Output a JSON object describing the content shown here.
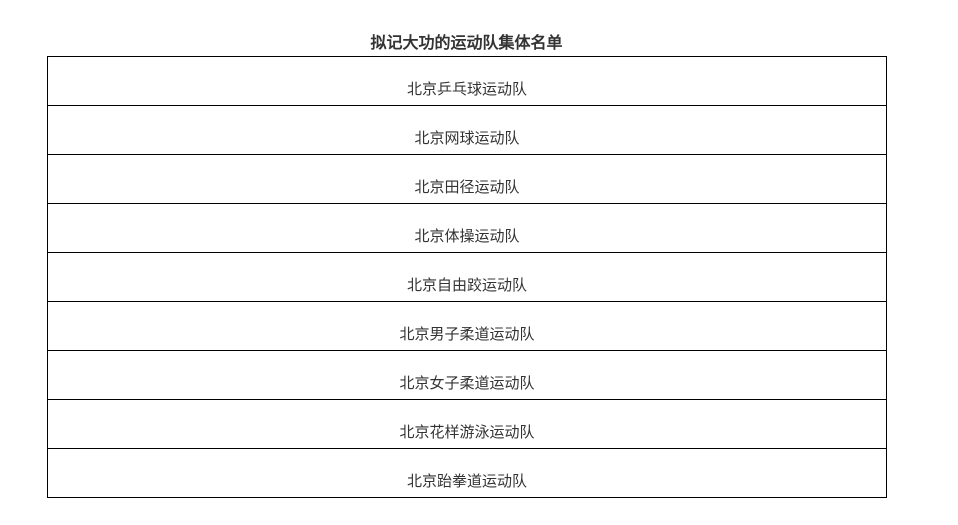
{
  "document": {
    "title": "拟记大功的运动队集体名单",
    "teams": [
      "北京乒乓球运动队",
      "北京网球运动队",
      "北京田径运动队",
      "北京体操运动队",
      "北京自由跤运动队",
      "北京男子柔道运动队",
      "北京女子柔道运动队",
      "北京花样游泳运动队",
      "北京跆拳道运动队"
    ]
  }
}
